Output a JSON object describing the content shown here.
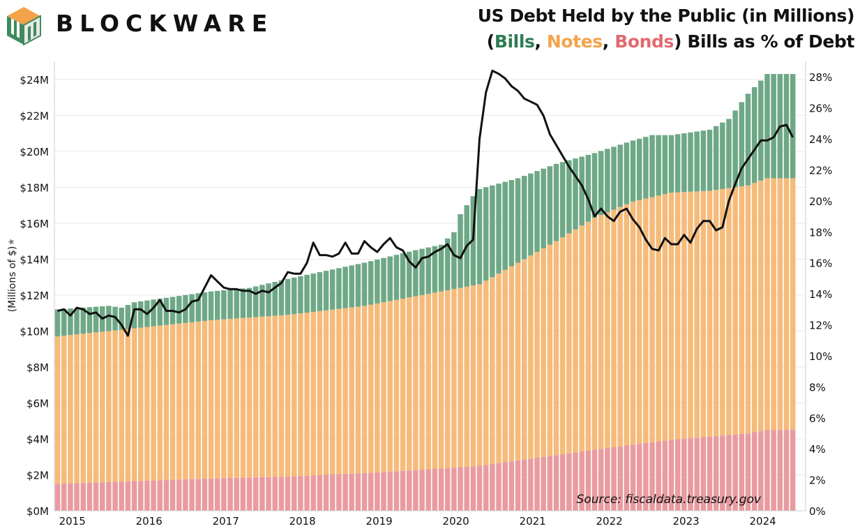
{
  "brand": {
    "name": "BLOCKWARE",
    "logo_icon": "blockware-logo-icon"
  },
  "title": {
    "line1": "US Debt Held by the Public (in Millions)",
    "line2": {
      "open_paren": "(",
      "bills": "Bills",
      "comma1": ", ",
      "notes": "Notes",
      "comma2": ", ",
      "bonds": "Bonds",
      "close_paren": ")",
      "suffix": " Bills as % of Debt"
    }
  },
  "source": "Source: fiscaldata.treasury.gov",
  "colors": {
    "bills": "#6fa886",
    "notes": "#f6bb7a",
    "bonds": "#e99ba0",
    "line": "#111111",
    "grid": "#e8e8e8",
    "axis": "#cccccc"
  },
  "chart_data": {
    "type": "bar",
    "stacked": true,
    "frequency": "monthly",
    "start": "2015-01",
    "end": "2024-04",
    "ylabel": "(Millions of $)",
    "ylim": [
      0,
      25000000
    ],
    "y_ticks": [
      "$0M",
      "$2M",
      "$4M",
      "$6M",
      "$8M",
      "$10M",
      "$12M",
      "$14M",
      "$16M",
      "$18M",
      "$20M",
      "$22M",
      "$24M"
    ],
    "y2lim": [
      0,
      29
    ],
    "y2_ticks": [
      "0%",
      "2%",
      "4%",
      "6%",
      "8%",
      "10%",
      "12%",
      "14%",
      "16%",
      "18%",
      "20%",
      "22%",
      "24%",
      "26%",
      "28%"
    ],
    "x_ticks": [
      "2015",
      "2016",
      "2017",
      "2018",
      "2019",
      "2020",
      "2021",
      "2022",
      "2023",
      "2024"
    ],
    "series_anchors": {
      "bonds_millions": [
        [
          0,
          1.5
        ],
        [
          12,
          1.65
        ],
        [
          24,
          1.8
        ],
        [
          36,
          1.9
        ],
        [
          48,
          2.1
        ],
        [
          60,
          2.35
        ],
        [
          66,
          2.5
        ],
        [
          72,
          2.8
        ],
        [
          84,
          3.4
        ],
        [
          96,
          3.95
        ],
        [
          108,
          4.3
        ],
        [
          111,
          4.5
        ]
      ],
      "notes_plus_bonds_millions": [
        [
          0,
          9.7
        ],
        [
          12,
          10.15
        ],
        [
          24,
          10.6
        ],
        [
          36,
          10.9
        ],
        [
          48,
          11.4
        ],
        [
          60,
          12.2
        ],
        [
          66,
          12.6
        ],
        [
          72,
          13.8
        ],
        [
          78,
          15.0
        ],
        [
          84,
          16.3
        ],
        [
          90,
          17.2
        ],
        [
          96,
          17.7
        ],
        [
          102,
          17.8
        ],
        [
          108,
          18.1
        ],
        [
          111,
          18.5
        ]
      ],
      "total_millions": [
        [
          0,
          11.2
        ],
        [
          8,
          11.4
        ],
        [
          10,
          11.3
        ],
        [
          12,
          11.6
        ],
        [
          24,
          12.2
        ],
        [
          30,
          12.4
        ],
        [
          36,
          12.9
        ],
        [
          48,
          13.8
        ],
        [
          56,
          14.5
        ],
        [
          60,
          14.8
        ],
        [
          62,
          15.5
        ],
        [
          63,
          16.5
        ],
        [
          65,
          17.5
        ],
        [
          66,
          17.9
        ],
        [
          72,
          18.5
        ],
        [
          78,
          19.3
        ],
        [
          84,
          19.9
        ],
        [
          90,
          20.6
        ],
        [
          93,
          20.9
        ],
        [
          96,
          20.9
        ],
        [
          102,
          21.2
        ],
        [
          105,
          21.8
        ],
        [
          108,
          23.2
        ],
        [
          111,
          24.3
        ]
      ]
    },
    "line_series": {
      "name": "Bills as % of Debt",
      "units": "percent",
      "values": [
        12.9,
        13.0,
        12.6,
        13.1,
        13.0,
        12.7,
        12.8,
        12.4,
        12.6,
        12.5,
        12.0,
        11.3,
        13.0,
        13.0,
        12.7,
        13.1,
        13.6,
        12.9,
        12.9,
        12.8,
        13.0,
        13.5,
        13.6,
        14.4,
        15.2,
        14.8,
        14.4,
        14.3,
        14.3,
        14.2,
        14.2,
        14.0,
        14.2,
        14.1,
        14.4,
        14.7,
        15.4,
        15.3,
        15.3,
        16.0,
        17.3,
        16.5,
        16.5,
        16.4,
        16.6,
        17.3,
        16.6,
        16.6,
        17.4,
        17.0,
        16.7,
        17.2,
        17.6,
        17.0,
        16.8,
        16.1,
        15.7,
        16.3,
        16.4,
        16.7,
        16.9,
        17.2,
        16.5,
        16.3,
        17.1,
        17.5,
        24.0,
        27.0,
        28.4,
        28.2,
        27.9,
        27.4,
        27.1,
        26.6,
        26.4,
        26.2,
        25.5,
        24.3,
        23.6,
        22.9,
        22.2,
        21.6,
        21.0,
        20.1,
        19.0,
        19.5,
        19.0,
        18.7,
        19.3,
        19.5,
        18.8,
        18.3,
        17.5,
        16.9,
        16.8,
        17.6,
        17.2,
        17.2,
        17.8,
        17.3,
        18.2,
        18.7,
        18.7,
        18.1,
        18.3,
        20.0,
        21.1,
        22.1,
        22.7,
        23.3,
        23.9,
        23.9,
        24.1,
        24.8,
        24.9,
        24.1
      ]
    }
  }
}
